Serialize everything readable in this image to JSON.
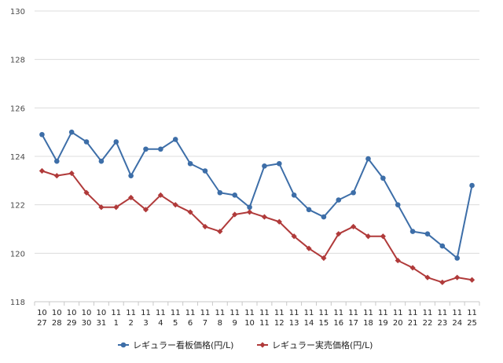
{
  "chart_data": {
    "type": "line",
    "x_month": [
      "10",
      "10",
      "10",
      "10",
      "10",
      "11",
      "11",
      "11",
      "11",
      "11",
      "11",
      "11",
      "11",
      "11",
      "11",
      "11",
      "11",
      "11",
      "11",
      "11",
      "11",
      "11",
      "11",
      "11",
      "11",
      "11",
      "11",
      "11",
      "11",
      "11"
    ],
    "x_day": [
      "27",
      "28",
      "29",
      "30",
      "31",
      "1",
      "2",
      "3",
      "4",
      "5",
      "6",
      "7",
      "8",
      "9",
      "10",
      "11",
      "12",
      "13",
      "14",
      "15",
      "16",
      "17",
      "18",
      "19",
      "20",
      "21",
      "22",
      "23",
      "24",
      "25"
    ],
    "series": [
      {
        "name": "レギュラー看板価格(円/L)",
        "color": "#3d6ea8",
        "marker": "circle",
        "values": [
          124.9,
          123.8,
          125.0,
          124.6,
          123.8,
          124.6,
          123.2,
          124.3,
          124.3,
          124.7,
          123.7,
          123.4,
          122.5,
          122.4,
          121.9,
          123.6,
          123.7,
          122.4,
          121.8,
          121.5,
          122.2,
          122.5,
          123.9,
          123.1,
          122.0,
          120.9,
          120.8,
          120.3,
          119.8,
          122.8
        ]
      },
      {
        "name": "レギュラー実売価格(円/L)",
        "color": "#b03a3a",
        "marker": "diamond",
        "values": [
          123.4,
          123.2,
          123.3,
          122.5,
          121.9,
          121.9,
          122.3,
          121.8,
          122.4,
          122.0,
          121.7,
          121.1,
          120.9,
          121.6,
          121.7,
          121.5,
          121.3,
          120.7,
          120.2,
          119.8,
          120.8,
          121.1,
          120.7,
          120.7,
          119.7,
          119.4,
          119.0,
          118.8,
          119.0,
          118.9
        ]
      }
    ],
    "y_ticks": [
      "130",
      "128",
      "126",
      "124",
      "122",
      "120",
      "118"
    ],
    "ylim": [
      118,
      130
    ],
    "grid": true,
    "legend_position": "bottom"
  }
}
